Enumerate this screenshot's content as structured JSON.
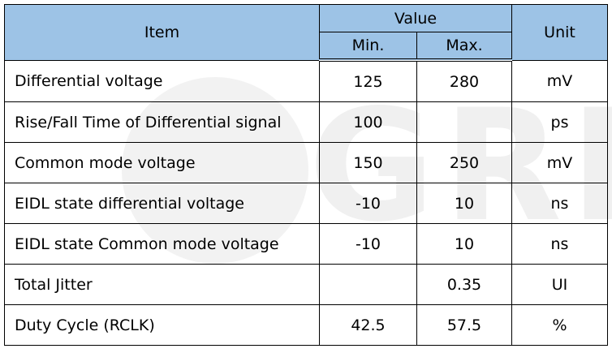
{
  "table": {
    "header": {
      "item": "Item",
      "value": "Value",
      "min": "Min.",
      "max": "Max.",
      "unit": "Unit"
    },
    "rows": [
      [
        "Differential voltage",
        "125",
        "280",
        "mV"
      ],
      [
        "Rise/Fall Time of Differential signal",
        "100",
        null,
        "ps"
      ],
      [
        "Common mode voltage",
        "150",
        "250",
        "mV"
      ],
      [
        "EIDL state differential voltage",
        "-10",
        "10",
        "ns"
      ],
      [
        "EIDL state Common mode voltage",
        "-10",
        "10",
        "ns"
      ],
      [
        "Total Jitter",
        null,
        "0.35",
        "UI"
      ],
      [
        "Duty Cycle (RCLK)",
        "42.5",
        "57.5",
        "%"
      ]
    ]
  },
  "watermark": "GRL"
}
